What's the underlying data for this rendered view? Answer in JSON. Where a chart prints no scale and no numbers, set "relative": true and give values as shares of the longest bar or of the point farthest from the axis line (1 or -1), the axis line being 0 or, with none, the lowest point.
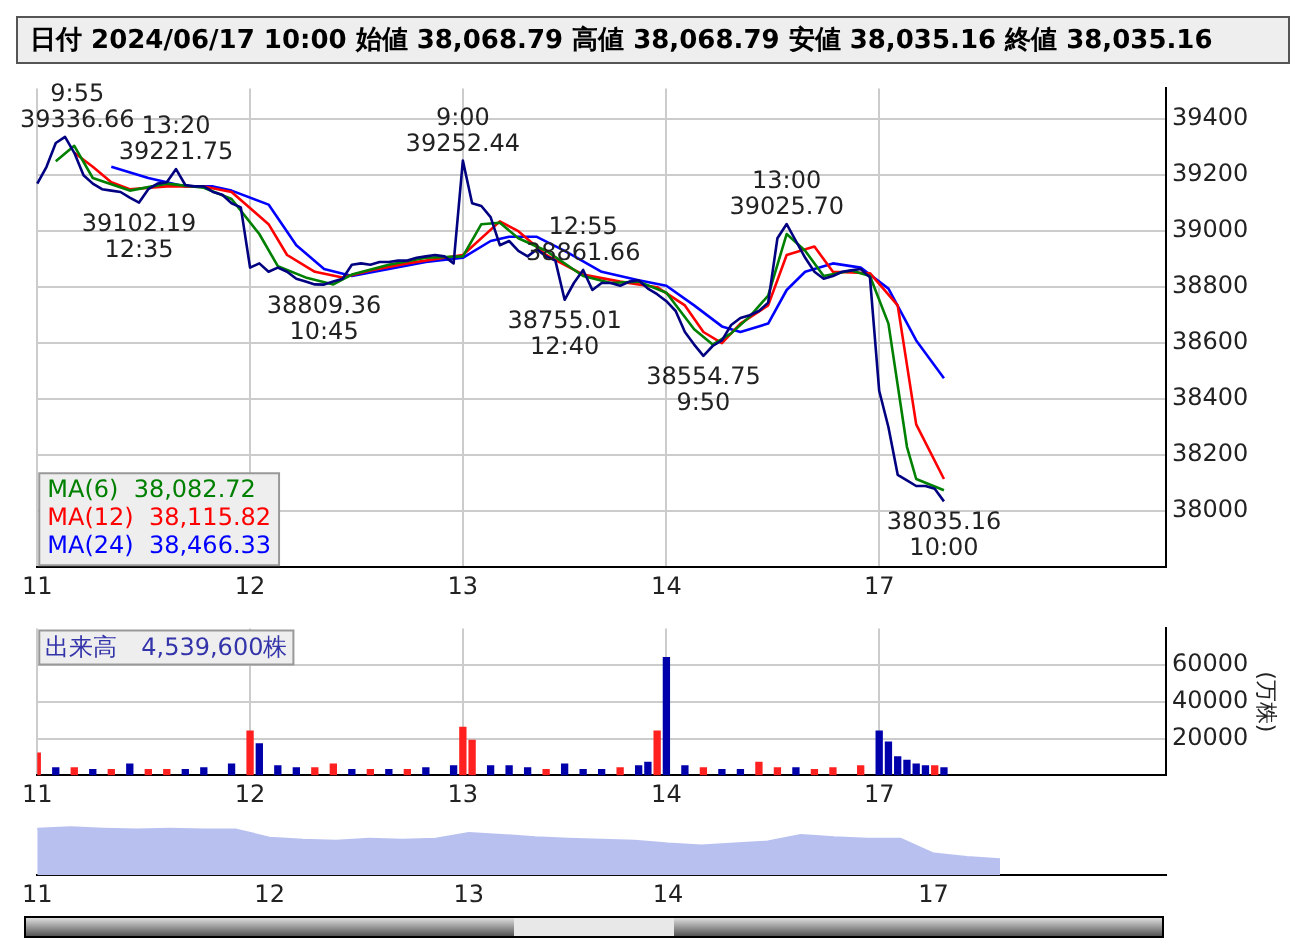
{
  "chart_data": [
    {
      "type": "line",
      "title": "日付 2024/06/17 10:00 始値 38,068.79 高値 38,068.79 安値 38,035.16 終値 38,035.16",
      "categories": [
        "11",
        null,
        null,
        null,
        null,
        null,
        null,
        null,
        null,
        null,
        null,
        null,
        null,
        null,
        null,
        null,
        null,
        null,
        null,
        null,
        null,
        null,
        null,
        "12",
        null,
        null,
        null,
        null,
        null,
        null,
        null,
        null,
        null,
        null,
        null,
        null,
        null,
        null,
        null,
        null,
        null,
        null,
        null,
        null,
        null,
        null,
        "13",
        null,
        null,
        null,
        null,
        null,
        null,
        null,
        null,
        null,
        null,
        null,
        null,
        null,
        null,
        null,
        null,
        null,
        null,
        null,
        null,
        null,
        "14",
        null,
        null,
        null,
        null,
        null,
        null,
        null,
        null,
        null,
        null,
        null,
        null,
        null,
        null,
        null,
        null,
        null,
        null,
        null,
        null,
        null,
        null,
        "17",
        null,
        null,
        null,
        null,
        null,
        null,
        null,
        null,
        null,
        null,
        null,
        null,
        null,
        null,
        null,
        null,
        null,
        null,
        null,
        null,
        null,
        null,
        null,
        null,
        null,
        null,
        null,
        null,
        null,
        null,
        null
      ],
      "series": [
        {
          "color": "#000080",
          "values": [
            39170,
            39230,
            39315,
            39336.66,
            39280,
            39200,
            39170,
            39150,
            39145,
            39140,
            39120,
            39102.19,
            39150,
            39170,
            39175,
            39221.75,
            39165,
            39160,
            39160,
            39140,
            39130,
            39100,
            39085,
            38870,
            38885,
            38855,
            38870,
            38855,
            38830,
            38820,
            38810,
            38809.36,
            38820,
            38830,
            38880,
            38885,
            38880,
            38890,
            38890,
            38895,
            38895,
            38905,
            38910,
            38915,
            38910,
            38885,
            39252.44,
            39100,
            39090,
            39050,
            38950,
            38965,
            38930,
            38910,
            38935,
            38910,
            38895,
            38755.01,
            38815,
            38861.66,
            38790,
            38815,
            38815,
            38805,
            38820,
            38825,
            38795,
            38775,
            38750,
            38715,
            38640,
            38595,
            38554.75,
            38590,
            38610,
            38665,
            38690,
            38700,
            38715,
            38745,
            38975,
            39025.7,
            38965,
            38905,
            38855,
            38830,
            38840,
            38855,
            38860,
            38865,
            38835,
            38430,
            38300,
            38130,
            38110,
            38090,
            38090,
            38080,
            38035.16,
            null,
            null,
            null,
            null,
            null,
            null,
            null,
            null,
            null,
            null,
            null,
            null,
            null,
            null,
            null,
            null,
            null,
            null,
            null,
            null,
            null,
            null,
            null,
            null
          ]
        },
        {
          "name": "MA(6)  38,082.72",
          "color": "#008000",
          "values": [
            null,
            null,
            39250,
            null,
            39305,
            null,
            39190,
            null,
            null,
            null,
            39145,
            null,
            null,
            null,
            39170,
            null,
            null,
            null,
            39155,
            null,
            null,
            39115,
            null,
            null,
            38990,
            null,
            38875,
            null,
            null,
            38835,
            null,
            null,
            38810,
            null,
            38845,
            null,
            null,
            null,
            38880,
            null,
            null,
            null,
            38905,
            null,
            null,
            null,
            38910,
            null,
            39025,
            null,
            39030,
            null,
            38975,
            null,
            null,
            38930,
            null,
            null,
            null,
            38840,
            null,
            null,
            38815,
            null,
            null,
            38820,
            null,
            null,
            38780,
            null,
            null,
            38650,
            null,
            38595,
            null,
            38635,
            null,
            38695,
            null,
            38770,
            null,
            38990,
            null,
            38930,
            null,
            38840,
            null,
            null,
            38860,
            null,
            38840,
            null,
            38670,
            null,
            38230,
            38115,
            null,
            null,
            38075,
            null,
            null,
            null,
            null,
            null,
            null,
            null,
            null,
            null,
            null,
            null,
            null,
            null,
            null,
            null,
            null,
            null,
            null,
            null,
            null,
            null,
            null,
            null,
            null
          ]
        },
        {
          "name": "MA(12)  38,115.82",
          "color": "#ff0000",
          "values": [
            null,
            null,
            null,
            null,
            39280,
            null,
            39230,
            null,
            39175,
            null,
            39150,
            null,
            null,
            null,
            39160,
            null,
            null,
            null,
            39160,
            null,
            null,
            39140,
            null,
            null,
            null,
            39025,
            null,
            38915,
            null,
            null,
            38855,
            null,
            null,
            38835,
            null,
            null,
            38860,
            null,
            null,
            null,
            38885,
            null,
            null,
            null,
            38905,
            null,
            38915,
            null,
            null,
            null,
            39035,
            null,
            39000,
            null,
            null,
            38915,
            null,
            null,
            null,
            38845,
            null,
            null,
            null,
            38820,
            null,
            null,
            null,
            38800,
            null,
            null,
            38735,
            null,
            38640,
            null,
            38600,
            null,
            38670,
            null,
            null,
            38735,
            null,
            38915,
            null,
            null,
            38945,
            null,
            38855,
            null,
            null,
            null,
            38850,
            null,
            null,
            38735,
            null,
            38310,
            null,
            null,
            38115,
            null,
            null,
            null,
            null,
            null,
            null,
            null,
            null,
            null,
            null,
            null,
            null,
            null,
            null,
            null,
            null,
            null,
            null,
            null,
            null,
            null,
            null,
            null,
            null
          ]
        },
        {
          "name": "MA(24)  38,466.33",
          "color": "#0000ff",
          "values": [
            null,
            null,
            null,
            null,
            null,
            null,
            null,
            null,
            39230,
            null,
            null,
            null,
            39190,
            null,
            null,
            null,
            39160,
            null,
            null,
            39160,
            null,
            39145,
            null,
            null,
            null,
            39095,
            null,
            null,
            38950,
            null,
            null,
            38865,
            null,
            null,
            38840,
            null,
            null,
            null,
            38865,
            null,
            null,
            null,
            38890,
            null,
            null,
            null,
            38905,
            null,
            null,
            38965,
            null,
            38980,
            null,
            null,
            38980,
            null,
            null,
            38930,
            null,
            null,
            null,
            38855,
            null,
            null,
            null,
            38825,
            null,
            null,
            38805,
            null,
            null,
            38735,
            null,
            null,
            38660,
            null,
            38640,
            null,
            null,
            38670,
            null,
            38790,
            null,
            38855,
            null,
            null,
            38885,
            null,
            null,
            38870,
            null,
            null,
            38795,
            null,
            null,
            38610,
            null,
            null,
            38475,
            null,
            null,
            null,
            null,
            null,
            null,
            null,
            null,
            null,
            null,
            null,
            null,
            null,
            null,
            null,
            null,
            null,
            null,
            null,
            null,
            null,
            null,
            null,
            null
          ]
        }
      ],
      "ylim": [
        37800,
        39510
      ],
      "yticks": [
        38000,
        38200,
        38400,
        38600,
        38800,
        39000,
        39200,
        39400
      ],
      "grid": true,
      "legend": "bottom left",
      "annotations": [
        {
          "text": "9:55\n39336.66",
          "y": 39336.66
        },
        {
          "text": "13:20\n39221.75",
          "y": 39221.75
        },
        {
          "text": "39102.19\n12:35",
          "y": 39102.19
        },
        {
          "text": "38809.36\n10:45",
          "y": 38809.36
        },
        {
          "text": "9:00\n39252.44",
          "y": 39252.44
        },
        {
          "text": "12:55\n38861.66",
          "y": 38861.66
        },
        {
          "text": "38755.01\n12:40",
          "y": 38755.01
        },
        {
          "text": "38554.75\n9:50",
          "y": 38554.75
        },
        {
          "text": "13:00\n39025.70",
          "y": 39025.7
        },
        {
          "text": "38035.16\n10:00",
          "y": 38035.16
        }
      ]
    },
    {
      "type": "bar",
      "ylabel": "(万株)",
      "annotations": [
        "出来高　4,539,600株"
      ],
      "categories": [
        "11",
        null,
        null,
        null,
        null,
        null,
        null,
        null,
        null,
        null,
        null,
        null,
        null,
        null,
        null,
        null,
        null,
        null,
        null,
        null,
        null,
        null,
        null,
        "12",
        null,
        null,
        null,
        null,
        null,
        null,
        null,
        null,
        null,
        null,
        null,
        null,
        null,
        null,
        null,
        null,
        null,
        null,
        null,
        null,
        null,
        null,
        "13",
        null,
        null,
        null,
        null,
        null,
        null,
        null,
        null,
        null,
        null,
        null,
        null,
        null,
        null,
        null,
        null,
        null,
        null,
        null,
        null,
        null,
        "14",
        null,
        null,
        null,
        null,
        null,
        null,
        null,
        null,
        null,
        null,
        null,
        null,
        null,
        null,
        null,
        null,
        null,
        null,
        null,
        null,
        null,
        null,
        "17",
        null,
        null,
        null,
        null,
        null,
        null,
        null,
        null,
        null,
        null,
        null,
        null,
        null,
        null,
        null,
        null,
        null,
        null,
        null,
        null,
        null,
        null,
        null,
        null,
        null,
        null,
        null,
        null,
        null,
        null,
        null
      ],
      "values": [
        12000,
        null,
        4000,
        null,
        4000,
        null,
        3000,
        null,
        3000,
        null,
        6000,
        null,
        3000,
        null,
        3000,
        null,
        3000,
        null,
        4000,
        null,
        null,
        6000,
        null,
        24000,
        17000,
        null,
        5000,
        null,
        4000,
        null,
        4000,
        null,
        6000,
        null,
        3000,
        null,
        3000,
        null,
        3000,
        null,
        3000,
        null,
        4000,
        null,
        null,
        5000,
        26000,
        19000,
        null,
        5000,
        null,
        5000,
        null,
        4000,
        null,
        3000,
        null,
        6000,
        null,
        3000,
        null,
        3000,
        null,
        4000,
        null,
        5000,
        7000,
        24000,
        64000,
        null,
        5000,
        null,
        4000,
        null,
        3000,
        null,
        3000,
        null,
        7000,
        null,
        4000,
        null,
        4000,
        null,
        3000,
        null,
        4000,
        null,
        null,
        5000,
        null,
        24000,
        18000,
        10000,
        8000,
        6000,
        5000,
        5000,
        4000,
        null,
        null,
        null,
        null,
        null,
        null,
        null,
        null,
        null,
        null,
        null,
        null,
        null,
        null,
        null,
        null,
        null,
        null,
        null,
        null,
        null,
        null,
        null,
        null
      ],
      "colors": [
        "#ff2020",
        null,
        "#0000aa",
        null,
        "#ff2020",
        null,
        "#0000aa",
        null,
        "#ff2020",
        null,
        "#0000aa",
        null,
        "#ff2020",
        null,
        "#ff2020",
        null,
        "#0000aa",
        null,
        "#0000aa",
        null,
        null,
        "#0000aa",
        null,
        "#ff2020",
        "#0000aa",
        null,
        "#0000aa",
        null,
        "#0000aa",
        null,
        "#ff2020",
        null,
        "#ff2020",
        null,
        "#0000aa",
        null,
        "#ff2020",
        null,
        "#0000aa",
        null,
        "#ff2020",
        null,
        "#0000aa",
        null,
        null,
        "#0000aa",
        "#ff2020",
        "#ff2020",
        null,
        "#0000aa",
        null,
        "#0000aa",
        null,
        "#0000aa",
        null,
        "#ff2020",
        null,
        "#0000aa",
        null,
        "#0000aa",
        null,
        "#0000aa",
        null,
        "#ff2020",
        null,
        "#0000aa",
        "#0000aa",
        "#ff2020",
        "#0000aa",
        null,
        "#0000aa",
        null,
        "#ff2020",
        null,
        "#0000aa",
        null,
        "#0000aa",
        null,
        "#ff2020",
        null,
        "#ff2020",
        null,
        "#0000aa",
        null,
        "#ff2020",
        null,
        "#ff2020",
        null,
        null,
        "#ff2020",
        null,
        "#0000aa",
        "#0000aa",
        "#0000aa",
        "#0000aa",
        "#0000aa",
        "#0000aa",
        "#ff2020",
        "#0000aa",
        null,
        null,
        null,
        null,
        null,
        null,
        null,
        null,
        null,
        null,
        null,
        null,
        null,
        null,
        null,
        null,
        null,
        null,
        null,
        null,
        null,
        null,
        null,
        null
      ],
      "ylim": [
        0,
        80000
      ],
      "yticks": [
        20000,
        40000,
        60000
      ],
      "grid": true
    },
    {
      "type": "area",
      "relative": true,
      "color": "#b8c0f0",
      "tick_labels": "x",
      "categories": [
        "11",
        null,
        null,
        null,
        null,
        null,
        null,
        "12",
        null,
        null,
        null,
        null,
        null,
        "13",
        null,
        null,
        null,
        null,
        null,
        "14",
        null,
        null,
        null,
        null,
        null,
        null,
        null,
        "17",
        null,
        null,
        null,
        null,
        null,
        null,
        null
      ],
      "values": [
        0.97,
        1,
        0.97,
        0.95,
        0.97,
        0.95,
        0.95,
        0.78,
        0.74,
        0.72,
        0.76,
        0.74,
        0.76,
        0.88,
        0.84,
        0.79,
        0.76,
        0.74,
        0.72,
        0.66,
        0.62,
        0.66,
        0.7,
        0.84,
        0.79,
        0.76,
        0.76,
        0.45,
        0.38,
        0.33,
        null,
        null,
        null,
        null,
        null
      ]
    }
  ]
}
